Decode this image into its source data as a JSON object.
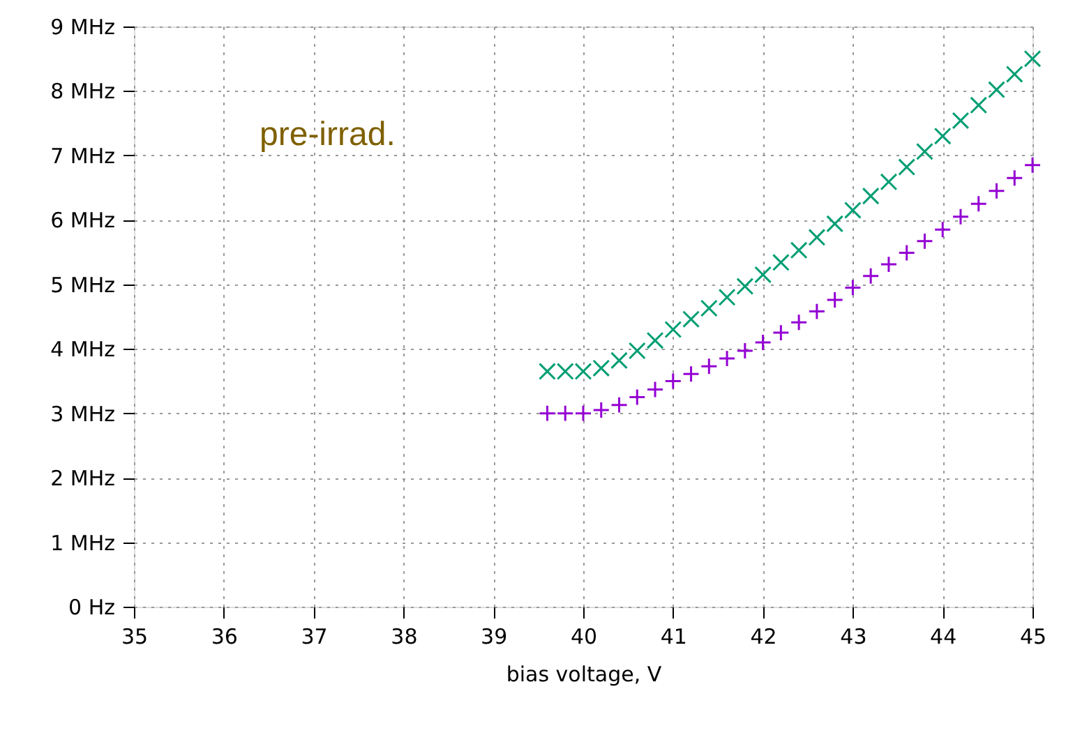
{
  "chart_data": {
    "type": "scatter",
    "xlabel": "bias voltage, V",
    "annotations": [
      "pre-irrad."
    ],
    "x": [
      39.6,
      39.8,
      40.0,
      40.2,
      40.4,
      40.6,
      40.8,
      41.0,
      41.2,
      41.4,
      41.6,
      41.8,
      42.0,
      42.2,
      42.4,
      42.6,
      42.8,
      43.0,
      43.2,
      43.4,
      43.6,
      43.8,
      44.0,
      44.2,
      44.4,
      44.6,
      44.8,
      45.0
    ],
    "series": [
      {
        "color": "#009e73",
        "marker": "cross",
        "values": [
          3.65,
          3.65,
          3.65,
          3.7,
          3.82,
          3.97,
          4.13,
          4.3,
          4.46,
          4.63,
          4.8,
          4.97,
          5.15,
          5.34,
          5.53,
          5.73,
          5.94,
          6.15,
          6.37,
          6.59,
          6.82,
          7.06,
          7.3,
          7.54,
          7.78,
          8.02,
          8.26,
          8.5
        ]
      },
      {
        "color": "#9400d3",
        "marker": "plus",
        "values": [
          3.0,
          3.0,
          3.0,
          3.05,
          3.13,
          3.25,
          3.37,
          3.5,
          3.61,
          3.73,
          3.85,
          3.97,
          4.1,
          4.25,
          4.41,
          4.58,
          4.76,
          4.95,
          5.13,
          5.31,
          5.49,
          5.67,
          5.85,
          6.05,
          6.25,
          6.45,
          6.65,
          6.85
        ]
      }
    ],
    "xlim": [
      35,
      45
    ],
    "xticks": [
      35,
      36,
      37,
      38,
      39,
      40,
      41,
      42,
      43,
      44,
      45
    ],
    "ylim": [
      0,
      9
    ],
    "yticks": [
      {
        "value": 0,
        "label": "0  Hz"
      },
      {
        "value": 1,
        "label": "1 MHz"
      },
      {
        "value": 2,
        "label": "2 MHz"
      },
      {
        "value": 3,
        "label": "3 MHz"
      },
      {
        "value": 4,
        "label": "4 MHz"
      },
      {
        "value": 5,
        "label": "5 MHz"
      },
      {
        "value": 6,
        "label": "6 MHz"
      },
      {
        "value": 7,
        "label": "7 MHz"
      },
      {
        "value": 8,
        "label": "8 MHz"
      },
      {
        "value": 9,
        "label": "9 MHz"
      }
    ],
    "grid": true
  }
}
